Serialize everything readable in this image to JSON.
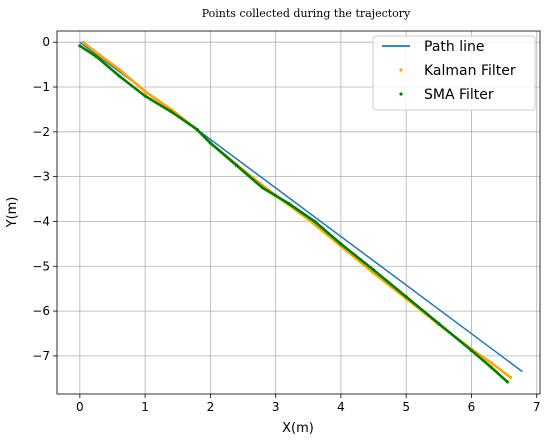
{
  "chart_data": {
    "type": "line",
    "title": "Points collected during the trajectory",
    "xlabel": "X(m)",
    "ylabel": "Y(m)",
    "xlim": [
      -0.35,
      7.05
    ],
    "ylim": [
      -7.85,
      0.25
    ],
    "xticks": [
      0,
      1,
      2,
      3,
      4,
      5,
      6,
      7
    ],
    "yticks": [
      0,
      -1,
      -2,
      -3,
      -4,
      -5,
      -6,
      -7
    ],
    "xtick_labels": [
      "0",
      "1",
      "2",
      "3",
      "4",
      "5",
      "6",
      "7"
    ],
    "ytick_labels": [
      "0",
      "−1",
      "−2",
      "−3",
      "−4",
      "−5",
      "−6",
      "−7"
    ],
    "grid": true,
    "legend_position": "top-right",
    "series": [
      {
        "name": "Path line",
        "style": "line",
        "color": "#1f77b4",
        "x": [
          0.0,
          6.78
        ],
        "y": [
          0.0,
          -7.35
        ]
      },
      {
        "name": "Kalman Filter",
        "style": "dots",
        "color": "#ffa500",
        "x": [
          0.05,
          0.3,
          0.6,
          1.0,
          1.4,
          1.75,
          2.0,
          2.5,
          3.0,
          3.5,
          4.0,
          4.5,
          5.0,
          5.5,
          6.0,
          6.3,
          6.6
        ],
        "y": [
          0.0,
          -0.28,
          -0.6,
          -1.1,
          -1.5,
          -1.9,
          -2.25,
          -2.85,
          -3.42,
          -3.95,
          -4.55,
          -5.15,
          -5.72,
          -6.3,
          -6.85,
          -7.15,
          -7.48
        ]
      },
      {
        "name": "SMA Filter",
        "style": "dots",
        "color": "#008000",
        "x": [
          0.0,
          0.25,
          0.6,
          1.0,
          1.4,
          1.8,
          2.0,
          2.4,
          2.8,
          3.2,
          3.6,
          4.0,
          4.5,
          5.0,
          5.5,
          6.0,
          6.3,
          6.55
        ],
        "y": [
          -0.08,
          -0.32,
          -0.75,
          -1.2,
          -1.55,
          -1.95,
          -2.25,
          -2.75,
          -3.25,
          -3.6,
          -4.0,
          -4.5,
          -5.08,
          -5.68,
          -6.28,
          -6.88,
          -7.25,
          -7.58
        ]
      }
    ]
  }
}
